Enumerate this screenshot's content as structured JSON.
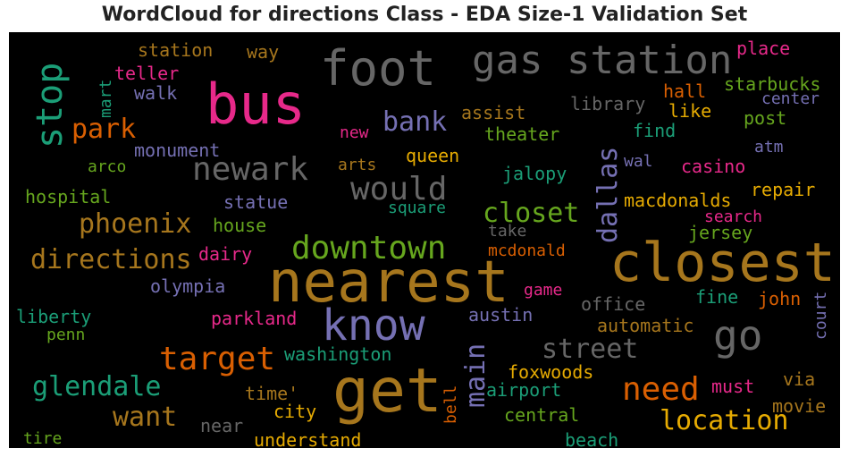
{
  "title": "WordCloud for directions Class - EDA Size-1 Validation Set",
  "palette": {
    "pink": "#e7298a",
    "gray": "#666666",
    "gold": "#a6761d",
    "purple": "#7570b3",
    "teal": "#1b9e77",
    "orange": "#d95f02",
    "green": "#66a61e",
    "yellow": "#e6ab02"
  },
  "words": {
    "nearest": "nearest",
    "closest": "closest",
    "get": "get",
    "bus": "bus",
    "foot": "foot",
    "gas_station": "gas station",
    "know": "know",
    "go": "go",
    "stop": "stop",
    "downtown": "downtown",
    "newark": "newark",
    "would": "would",
    "target": "target",
    "need": "need",
    "location": "location",
    "directions": "directions",
    "phoenix": "phoenix",
    "closet": "closet",
    "glendale": "glendale",
    "street": "street",
    "park": "park",
    "bank": "bank",
    "dallas": "dallas",
    "want": "want",
    "main": "main",
    "station": "station",
    "way": "way",
    "teller": "teller",
    "mart": "mart",
    "walk": "walk",
    "place": "place",
    "starbucks": "starbucks",
    "center": "center",
    "hall": "hall",
    "like": "like",
    "post": "post",
    "library": "library",
    "assist": "assist",
    "find": "find",
    "new": "new",
    "theater": "theater",
    "monument": "monument",
    "queen": "queen",
    "atm": "atm",
    "arco": "arco",
    "arts": "arts",
    "jalopy": "jalopy",
    "wal": "wal",
    "casino": "casino",
    "hospital": "hospital",
    "statue": "statue",
    "square": "square",
    "macdonalds": "macdonalds",
    "repair": "repair",
    "house": "house",
    "search": "search",
    "take": "take",
    "jersey": "jersey",
    "dairy": "dairy",
    "mcdonald": "mcdonald",
    "olympia": "olympia",
    "game": "game",
    "office": "office",
    "fine": "fine",
    "john": "john",
    "court": "court",
    "liberty": "liberty",
    "parkland": "parkland",
    "austin": "austin",
    "automatic": "automatic",
    "penn": "penn",
    "washington": "washington",
    "foxwoods": "foxwoods",
    "via": "via",
    "must": "must",
    "airport": "airport",
    "bell": "bell",
    "movie": "movie",
    "time": "time'",
    "city": "city",
    "central": "central",
    "near": "near",
    "tire": "tire",
    "understand": "understand",
    "beach": "beach"
  }
}
